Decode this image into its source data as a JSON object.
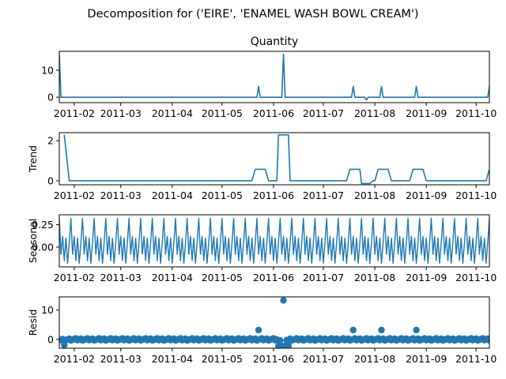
{
  "figure": {
    "suptitle": "Decomposition for ('EIRE', 'ENAMEL WASH BOWL CREAM')"
  },
  "chart_data": [
    {
      "type": "line",
      "panel": "observed",
      "title": "Quantity",
      "ylabel": "",
      "color": "#1f77b4",
      "xlim": [
        "2011-01-23",
        "2011-10-09"
      ],
      "ylim": [
        -2,
        17
      ],
      "xticks": [
        "2011-02",
        "2011-03",
        "2011-04",
        "2011-05",
        "2011-06",
        "2011-07",
        "2011-08",
        "2011-09",
        "2011-10"
      ],
      "yticks": [
        0,
        10
      ],
      "baseline": 0,
      "spikes": [
        {
          "date": "2011-01-23",
          "value": 16
        },
        {
          "date": "2011-05-23",
          "value": 4
        },
        {
          "date": "2011-06-07",
          "value": 16
        },
        {
          "date": "2011-07-19",
          "value": 4
        },
        {
          "date": "2011-07-27",
          "value": -1
        },
        {
          "date": "2011-08-05",
          "value": 4
        },
        {
          "date": "2011-08-26",
          "value": 4
        },
        {
          "date": "2011-10-09",
          "value": 4
        }
      ]
    },
    {
      "type": "line",
      "panel": "trend",
      "ylabel": "Trend",
      "color": "#1f77b4",
      "xlim": [
        "2011-01-23",
        "2011-10-09"
      ],
      "ylim": [
        -0.2,
        2.4
      ],
      "yticks": [
        0,
        2
      ],
      "points": [
        {
          "date": "2011-01-26",
          "value": 2.29
        },
        {
          "date": "2011-01-29",
          "value": 0
        },
        {
          "date": "2011-05-19",
          "value": 0
        },
        {
          "date": "2011-05-21",
          "value": 0.57
        },
        {
          "date": "2011-05-27",
          "value": 0.57
        },
        {
          "date": "2011-05-29",
          "value": 0
        },
        {
          "date": "2011-06-03",
          "value": 0
        },
        {
          "date": "2011-06-04",
          "value": 2.29
        },
        {
          "date": "2011-06-10",
          "value": 2.29
        },
        {
          "date": "2011-06-11",
          "value": 0
        },
        {
          "date": "2011-07-15",
          "value": 0
        },
        {
          "date": "2011-07-17",
          "value": 0.57
        },
        {
          "date": "2011-07-23",
          "value": 0.57
        },
        {
          "date": "2011-07-24",
          "value": -0.14
        },
        {
          "date": "2011-07-29",
          "value": -0.14
        },
        {
          "date": "2011-07-31",
          "value": 0
        },
        {
          "date": "2011-08-01",
          "value": 0
        },
        {
          "date": "2011-08-03",
          "value": 0.57
        },
        {
          "date": "2011-08-09",
          "value": 0.57
        },
        {
          "date": "2011-08-11",
          "value": 0
        },
        {
          "date": "2011-08-22",
          "value": 0
        },
        {
          "date": "2011-08-24",
          "value": 0.57
        },
        {
          "date": "2011-08-30",
          "value": 0.57
        },
        {
          "date": "2011-09-01",
          "value": 0
        },
        {
          "date": "2011-10-07",
          "value": 0
        },
        {
          "date": "2011-10-09",
          "value": 0.57
        }
      ]
    },
    {
      "type": "line",
      "panel": "seasonal",
      "ylabel": "Seasonal",
      "color": "#1f77b4",
      "xlim": [
        "2011-01-23",
        "2011-10-09"
      ],
      "ylim": [
        -0.22,
        0.36
      ],
      "yticks": [
        0.25,
        0.0
      ],
      "ytick_labels": [
        "0.25",
        "0.00"
      ],
      "start": "2011-01-23",
      "period_days": 7,
      "cycle": [
        0.32,
        -0.08,
        0.12,
        -0.15,
        0.1,
        -0.18,
        0.05
      ]
    },
    {
      "type": "scatter",
      "panel": "resid",
      "ylabel": "Resid",
      "color": "#1f77b4",
      "xlim": [
        "2011-01-23",
        "2011-10-09"
      ],
      "ylim": [
        -3,
        14.5
      ],
      "yticks": [
        0,
        10
      ],
      "points": [
        {
          "date": "2011-05-23",
          "value": 3.2
        },
        {
          "date": "2011-06-07",
          "value": 13.3
        },
        {
          "date": "2011-07-19",
          "value": 3.2
        },
        {
          "date": "2011-08-05",
          "value": 3.2
        },
        {
          "date": "2011-08-26",
          "value": 3.2
        }
      ],
      "low_points": [
        {
          "date": "2011-01-26",
          "value": -1.9
        },
        {
          "date": "2011-06-04",
          "value": -2.2
        },
        {
          "date": "2011-06-06",
          "value": -2.2
        },
        {
          "date": "2011-06-08",
          "value": -2.2
        },
        {
          "date": "2011-06-10",
          "value": -2.2
        }
      ]
    }
  ]
}
